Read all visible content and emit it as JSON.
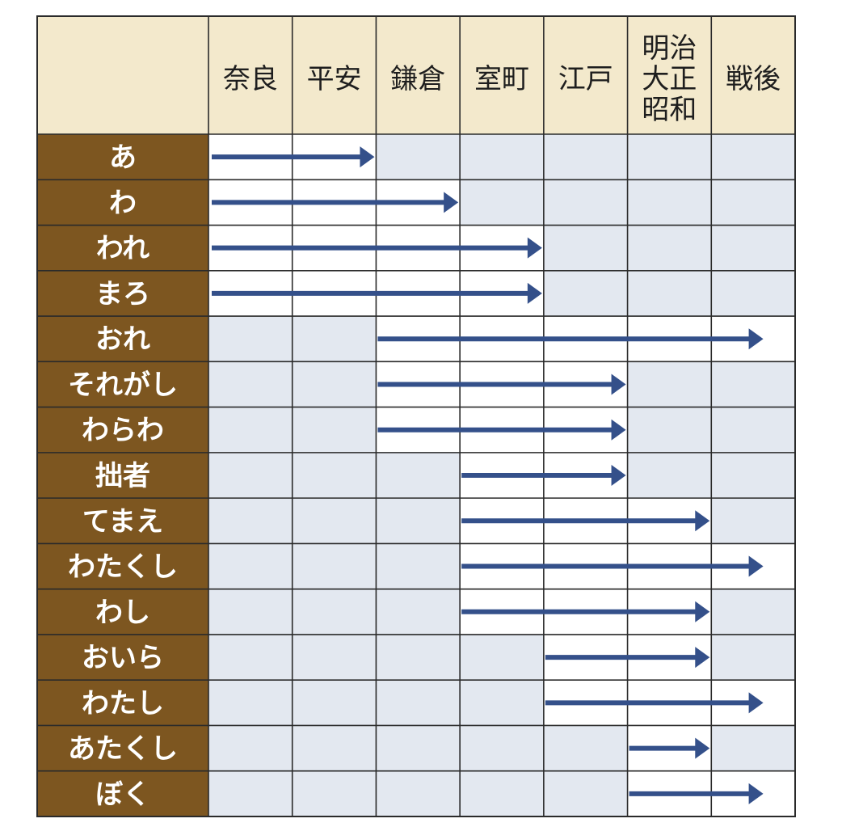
{
  "chart_data": {
    "type": "table",
    "eras": [
      {
        "key": "nara",
        "lines": [
          "奈良"
        ]
      },
      {
        "key": "heian",
        "lines": [
          "平安"
        ]
      },
      {
        "key": "kamakura",
        "lines": [
          "鎌倉"
        ]
      },
      {
        "key": "muromachi",
        "lines": [
          "室町"
        ]
      },
      {
        "key": "edo",
        "lines": [
          "江戸"
        ]
      },
      {
        "key": "meiji-taisho-showa",
        "lines": [
          "明治",
          "大正",
          "昭和"
        ]
      },
      {
        "key": "sengo",
        "lines": [
          "戦後"
        ]
      }
    ],
    "rows": [
      {
        "label": "あ",
        "start_era": 0,
        "end_era": 1
      },
      {
        "label": "わ",
        "start_era": 0,
        "end_era": 2
      },
      {
        "label": "われ",
        "start_era": 0,
        "end_era": 3
      },
      {
        "label": "まろ",
        "start_era": 0,
        "end_era": 3
      },
      {
        "label": "おれ",
        "start_era": 2,
        "end_era": 6
      },
      {
        "label": "それがし",
        "start_era": 2,
        "end_era": 4
      },
      {
        "label": "わらわ",
        "start_era": 2,
        "end_era": 4
      },
      {
        "label": "拙者",
        "start_era": 3,
        "end_era": 4
      },
      {
        "label": "てまえ",
        "start_era": 3,
        "end_era": 5
      },
      {
        "label": "わたくし",
        "start_era": 3,
        "end_era": 6
      },
      {
        "label": "わし",
        "start_era": 3,
        "end_era": 5
      },
      {
        "label": "おいら",
        "start_era": 4,
        "end_era": 5
      },
      {
        "label": "わたし",
        "start_era": 4,
        "end_era": 6
      },
      {
        "label": "あたくし",
        "start_era": 5,
        "end_era": 5
      },
      {
        "label": "ぼく",
        "start_era": 5,
        "end_era": 6
      }
    ]
  },
  "colors": {
    "header_bg": "#f3e9cc",
    "row_label_bg": "#7d5620",
    "active_cell": "#ffffff",
    "inactive_cell": "#e3e8f0",
    "arrow": "#34508a",
    "grid": "#2a2a2a"
  }
}
